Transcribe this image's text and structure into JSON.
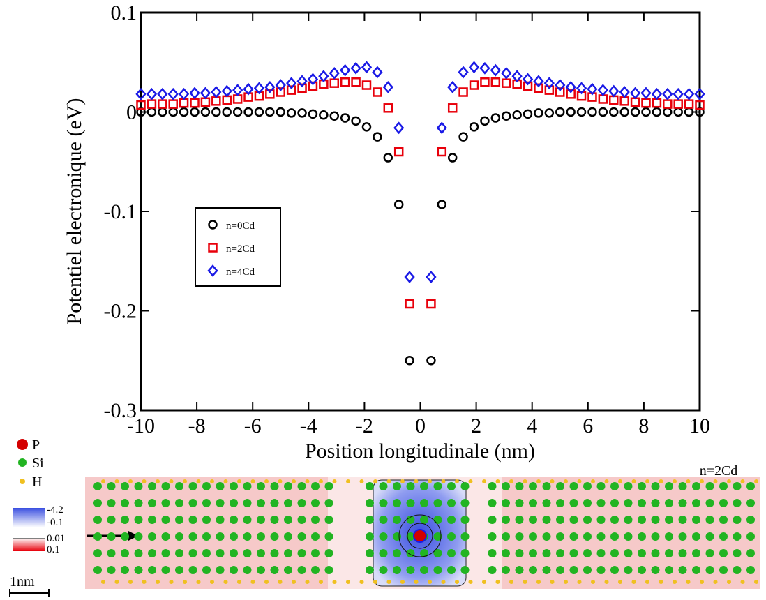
{
  "chart_data": {
    "type": "scatter",
    "xlabel": "Position longitudinale (nm)",
    "ylabel": "Potentiel electronique (eV)",
    "xlim": [
      -10,
      10
    ],
    "xticks": [
      -10,
      -8,
      -6,
      -4,
      -2,
      0,
      2,
      4,
      6,
      8,
      10
    ],
    "ylim": [
      -0.3,
      0.1
    ],
    "yticks": [
      -0.3,
      -0.2,
      -0.1,
      0,
      0.1
    ],
    "legend": "left",
    "x": [
      -10,
      -9.615,
      -9.231,
      -8.846,
      -8.462,
      -8.077,
      -7.692,
      -7.308,
      -6.923,
      -6.538,
      -6.154,
      -5.769,
      -5.385,
      -5,
      -4.615,
      -4.231,
      -3.846,
      -3.462,
      -3.077,
      -2.692,
      -2.308,
      -1.923,
      -1.538,
      -1.154,
      -0.769,
      -0.385,
      0.385,
      0.769,
      1.154,
      1.538,
      1.923,
      2.308,
      2.692,
      3.077,
      3.462,
      3.846,
      4.231,
      4.615,
      5,
      5.385,
      5.769,
      6.154,
      6.538,
      6.923,
      7.308,
      7.692,
      8.077,
      8.462,
      8.846,
      9.231,
      9.615,
      10
    ],
    "series": [
      {
        "name": "n=0Cd",
        "color": "#000000",
        "marker": "circle",
        "values": [
          0,
          0,
          0,
          0,
          0,
          0,
          0,
          0,
          0,
          0,
          0,
          0,
          0,
          0,
          -0.001,
          -0.001,
          -0.002,
          -0.003,
          -0.004,
          -0.006,
          -0.009,
          -0.015,
          -0.025,
          -0.046,
          -0.093,
          -0.25,
          -0.25,
          -0.093,
          -0.046,
          -0.025,
          -0.015,
          -0.009,
          -0.006,
          -0.004,
          -0.003,
          -0.002,
          -0.001,
          -0.001,
          0,
          0,
          0,
          0,
          0,
          0,
          0,
          0,
          0,
          0,
          0,
          0,
          0,
          0
        ]
      },
      {
        "name": "n=2Cd",
        "color": "#e8000b",
        "marker": "square",
        "values": [
          0.007,
          0.008,
          0.008,
          0.008,
          0.009,
          0.009,
          0.01,
          0.011,
          0.012,
          0.013,
          0.015,
          0.016,
          0.018,
          0.02,
          0.022,
          0.024,
          0.026,
          0.028,
          0.029,
          0.03,
          0.03,
          0.027,
          0.02,
          0.004,
          -0.04,
          -0.193,
          -0.193,
          -0.04,
          0.004,
          0.02,
          0.027,
          0.03,
          0.03,
          0.029,
          0.028,
          0.026,
          0.024,
          0.022,
          0.02,
          0.018,
          0.016,
          0.015,
          0.013,
          0.012,
          0.011,
          0.01,
          0.009,
          0.009,
          0.008,
          0.008,
          0.008,
          0.007
        ]
      },
      {
        "name": "n=4Cd",
        "color": "#1a1ae6",
        "marker": "diamond",
        "values": [
          0.018,
          0.018,
          0.018,
          0.018,
          0.018,
          0.019,
          0.019,
          0.02,
          0.021,
          0.022,
          0.023,
          0.024,
          0.025,
          0.027,
          0.029,
          0.031,
          0.033,
          0.036,
          0.039,
          0.042,
          0.044,
          0.045,
          0.04,
          0.025,
          -0.016,
          -0.166,
          -0.166,
          -0.016,
          0.025,
          0.04,
          0.045,
          0.044,
          0.042,
          0.039,
          0.036,
          0.033,
          0.031,
          0.029,
          0.027,
          0.025,
          0.024,
          0.023,
          0.022,
          0.021,
          0.02,
          0.019,
          0.019,
          0.018,
          0.018,
          0.018,
          0.018,
          0.018
        ]
      }
    ]
  },
  "figure": {
    "atoms": [
      "P",
      "Si",
      "H"
    ],
    "colorbar": [
      -4.2,
      -0.1,
      0.01,
      0.1
    ],
    "scale": "1nm",
    "label": "n=2Cd"
  }
}
